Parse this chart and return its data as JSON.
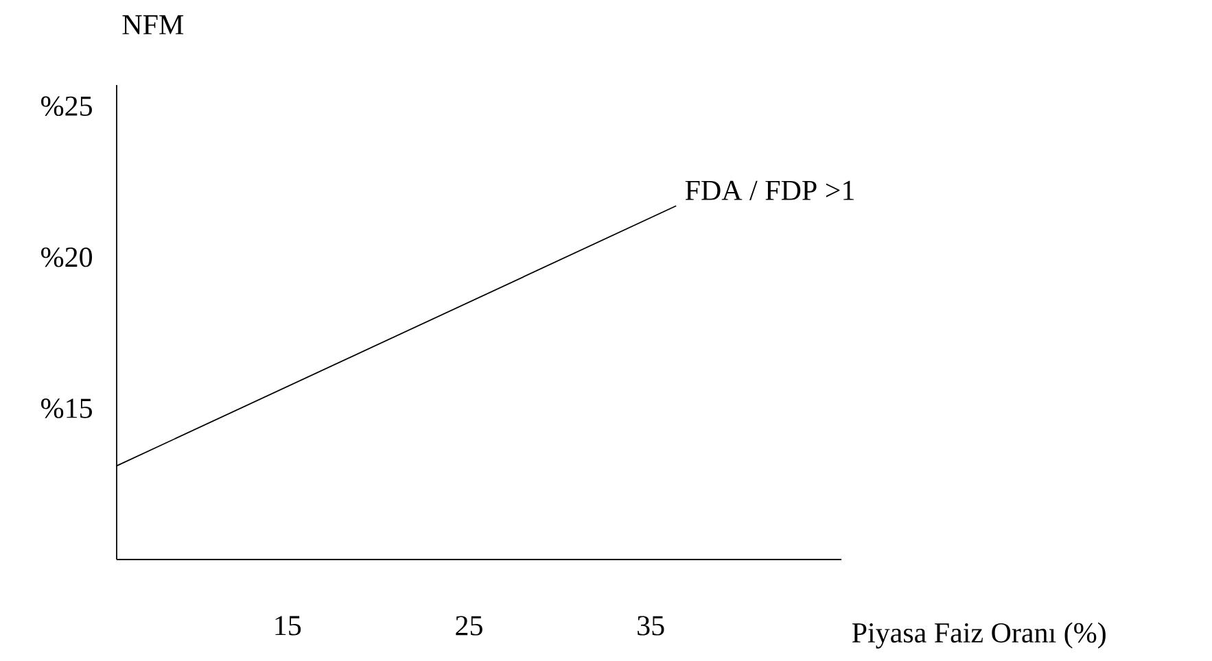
{
  "chart_data": {
    "type": "line",
    "xlabel": "Piyasa Faiz Oranı (%)",
    "ylabel": "NFM",
    "xlim": [
      5.6,
      45.5
    ],
    "ylim": [
      10,
      25.7
    ],
    "xticks": [
      15,
      25,
      35
    ],
    "yticks": [
      {
        "value": 15,
        "label": "%15"
      },
      {
        "value": 20,
        "label": "%20"
      },
      {
        "value": 25,
        "label": "%25"
      }
    ],
    "series": [
      {
        "name": "FDA / FDP >1",
        "color": "#000000",
        "x": [
          5.6,
          36.4
        ],
        "values": [
          13.1,
          21.7
        ]
      }
    ]
  }
}
